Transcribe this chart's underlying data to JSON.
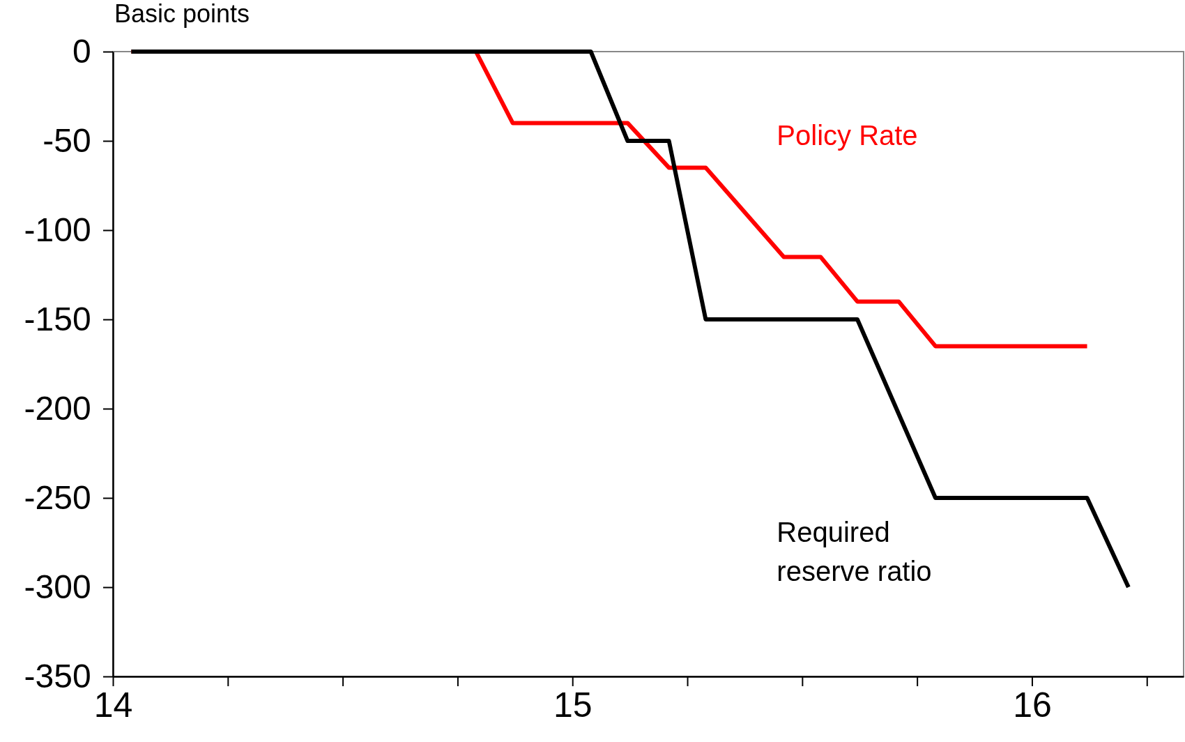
{
  "chart_data": {
    "type": "line",
    "ylabel": "Basic points",
    "xlim": [
      14,
      16.33
    ],
    "xticks": [
      14,
      {
        "value": 14.25,
        "label": null
      },
      {
        "value": 14.5,
        "label": null
      },
      {
        "value": 14.75,
        "label": null
      },
      15,
      {
        "value": 15.25,
        "label": null
      },
      {
        "value": 15.5,
        "label": null
      },
      {
        "value": 15.75,
        "label": null
      },
      16,
      {
        "value": 16.25,
        "label": null
      }
    ],
    "ylim": [
      -350,
      0
    ],
    "yticks": [
      0,
      -50,
      -100,
      -150,
      -200,
      -250,
      -300,
      -350
    ],
    "grid": false,
    "marker": "none",
    "line_style": "solid",
    "series": [
      {
        "name": "Policy Rate",
        "color": "#ff0000",
        "x": [
          14.04,
          14.79,
          14.87,
          15.12,
          15.21,
          15.29,
          15.46,
          15.54,
          15.62,
          15.71,
          15.79,
          16.12
        ],
        "values": [
          0,
          0,
          -40,
          -40,
          -65,
          -65,
          -115,
          -115,
          -140,
          -140,
          -165,
          -165
        ]
      },
      {
        "name": "Required reserve ratio",
        "color": "#000000",
        "x": [
          14.04,
          15.04,
          15.12,
          15.21,
          15.29,
          15.62,
          15.79,
          16.12,
          16.21
        ],
        "values": [
          0,
          0,
          -50,
          -50,
          -150,
          -150,
          -250,
          -250,
          -300
        ]
      }
    ]
  }
}
